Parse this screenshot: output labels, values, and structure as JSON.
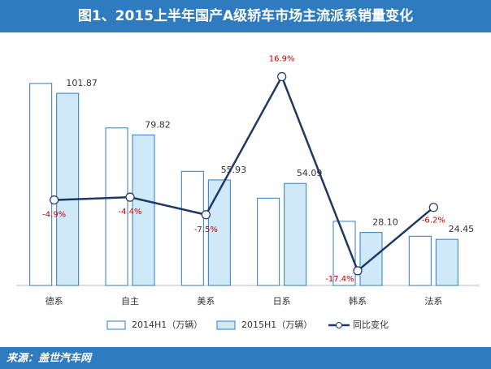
{
  "chart_data": {
    "type": "bar",
    "title": "图1、2015上半年国产A级轿车市场主流派系销量变化",
    "source": "来源：盖世汽车网",
    "categories": [
      "德系",
      "自主",
      "美系",
      "日系",
      "韩系",
      "法系"
    ],
    "series": [
      {
        "name": "2014H1（万辆）",
        "type": "bar",
        "color": "#ffffff",
        "stroke": "#2f7bbf",
        "values": [
          107.1,
          83.5,
          60.5,
          46.3,
          34.0,
          26.1
        ]
      },
      {
        "name": "2015H1（万辆）",
        "type": "bar",
        "color": "#cfe9f8",
        "stroke": "#2f7bbf",
        "values": [
          101.87,
          79.82,
          55.93,
          54.09,
          28.1,
          24.45
        ],
        "value_labels": [
          "101.87",
          "79.82",
          "55.93",
          "54.09",
          "28.10",
          "24.45"
        ]
      },
      {
        "name": "同比变化",
        "type": "line",
        "axis": "y2",
        "color": "#1f3864",
        "values": [
          -4.9,
          -4.4,
          -7.5,
          16.9,
          -17.4,
          -6.2
        ],
        "value_labels": [
          "-4.9%",
          "-4.4%",
          "-7.5%",
          "16.9%",
          "-17.4%",
          "-6.2%"
        ]
      }
    ],
    "ylim": [
      0,
      135
    ],
    "y2lim": [
      -20,
      25
    ],
    "legend": "bottom"
  }
}
